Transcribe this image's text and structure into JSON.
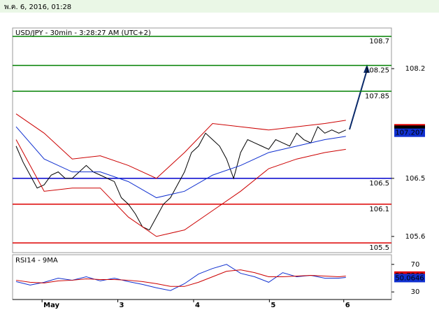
{
  "header": "พ.ค. 6, 2016, 01:28",
  "chart_data": [
    {
      "type": "line",
      "title": "USD/JPY - 30min - 3:28:27 AM (UTC+2)",
      "xlim": [
        -0.5,
        53.5
      ],
      "xticks": [
        {
          "value": 3.7,
          "label": "May"
        },
        {
          "value": 14.5,
          "label": "3"
        },
        {
          "value": 25.3,
          "label": "4"
        },
        {
          "value": 36.1,
          "label": "5"
        },
        {
          "value": 46.7,
          "label": "6"
        }
      ],
      "ylim": [
        105.36,
        108.83
      ],
      "yticks": [
        105.6,
        106.5,
        108.2
      ],
      "levels": [
        {
          "value": 108.7,
          "color": "#008000"
        },
        {
          "value": 108.25,
          "color": "#008000"
        },
        {
          "value": 107.85,
          "color": "#008000"
        },
        {
          "value": 106.5,
          "color": "#0000cc"
        },
        {
          "value": 106.1,
          "color": "#dd0000"
        },
        {
          "value": 105.5,
          "color": "#dd0000"
        }
      ],
      "price_tags": [
        {
          "value": 107.276,
          "color": "#e00000"
        },
        {
          "value": 107.254,
          "color": "#000000"
        },
        {
          "value": 107.207,
          "color": "#1030d0"
        }
      ],
      "series": [
        {
          "color": "#000000",
          "x": [
            0,
            1,
            2,
            3,
            4,
            5,
            6,
            7,
            8,
            9,
            10,
            11,
            12,
            13,
            14,
            15,
            16,
            17,
            18,
            19,
            20,
            21,
            22,
            23,
            24,
            25,
            26,
            27,
            28,
            29,
            30,
            31,
            32,
            33,
            34,
            35,
            36,
            37,
            38,
            39,
            40,
            41,
            42,
            43,
            44,
            45,
            46,
            47
          ],
          "values": [
            107.0,
            106.75,
            106.55,
            106.35,
            106.4,
            106.55,
            106.6,
            106.5,
            106.5,
            106.6,
            106.7,
            106.6,
            106.55,
            106.5,
            106.45,
            106.2,
            106.1,
            105.95,
            105.75,
            105.7,
            105.9,
            106.1,
            106.2,
            106.4,
            106.6,
            106.9,
            107.0,
            107.2,
            107.1,
            107.0,
            106.8,
            106.5,
            106.9,
            107.1,
            107.05,
            107.0,
            106.95,
            107.1,
            107.05,
            107.0,
            107.2,
            107.1,
            107.05,
            107.3,
            107.2,
            107.25,
            107.2,
            107.25
          ]
        },
        {
          "color": "#cc0000",
          "x": [
            0,
            4,
            8,
            12,
            16,
            20,
            24,
            28,
            32,
            36,
            40,
            44,
            47
          ],
          "values": [
            107.5,
            107.2,
            106.8,
            106.85,
            106.7,
            106.5,
            106.9,
            107.35,
            107.3,
            107.25,
            107.3,
            107.35,
            107.4
          ]
        },
        {
          "color": "#cc0000",
          "x": [
            0,
            4,
            8,
            12,
            16,
            20,
            24,
            28,
            32,
            36,
            40,
            44,
            47
          ],
          "values": [
            107.1,
            106.3,
            106.35,
            106.35,
            105.9,
            105.6,
            105.7,
            106.0,
            106.3,
            106.65,
            106.8,
            106.9,
            106.95
          ]
        },
        {
          "color": "#1030d0",
          "x": [
            0,
            4,
            8,
            12,
            16,
            20,
            24,
            28,
            32,
            36,
            40,
            44,
            47
          ],
          "values": [
            107.3,
            106.8,
            106.6,
            106.6,
            106.45,
            106.2,
            106.3,
            106.55,
            106.7,
            106.9,
            107.0,
            107.1,
            107.15
          ]
        }
      ]
    },
    {
      "type": "line",
      "title": "RSI14 - 9MA",
      "xlim": [
        -0.5,
        53.5
      ],
      "ylim": [
        19,
        83
      ],
      "yticks": [
        30,
        70
      ],
      "price_tags": [
        {
          "value": 53.7268,
          "color": "#e00000"
        },
        {
          "value": 50.0646,
          "color": "#1030d0"
        }
      ],
      "series": [
        {
          "color": "#1030d0",
          "x": [
            0,
            2,
            4,
            6,
            8,
            10,
            12,
            14,
            16,
            18,
            20,
            22,
            24,
            26,
            28,
            30,
            32,
            34,
            36,
            38,
            40,
            42,
            44,
            46,
            47
          ],
          "values": [
            45,
            40,
            44,
            50,
            47,
            52,
            46,
            50,
            45,
            41,
            36,
            32,
            42,
            56,
            64,
            70,
            57,
            52,
            44,
            58,
            52,
            54,
            50,
            50,
            51
          ]
        },
        {
          "color": "#cc0000",
          "x": [
            0,
            2,
            4,
            6,
            8,
            10,
            12,
            14,
            16,
            18,
            20,
            22,
            24,
            26,
            28,
            30,
            32,
            34,
            36,
            38,
            40,
            42,
            44,
            46,
            47
          ],
          "values": [
            47,
            44,
            43,
            46,
            47,
            49,
            48,
            48,
            47,
            45,
            42,
            38,
            38,
            44,
            52,
            60,
            62,
            58,
            52,
            52,
            53,
            54,
            53,
            52,
            53
          ]
        }
      ]
    }
  ]
}
